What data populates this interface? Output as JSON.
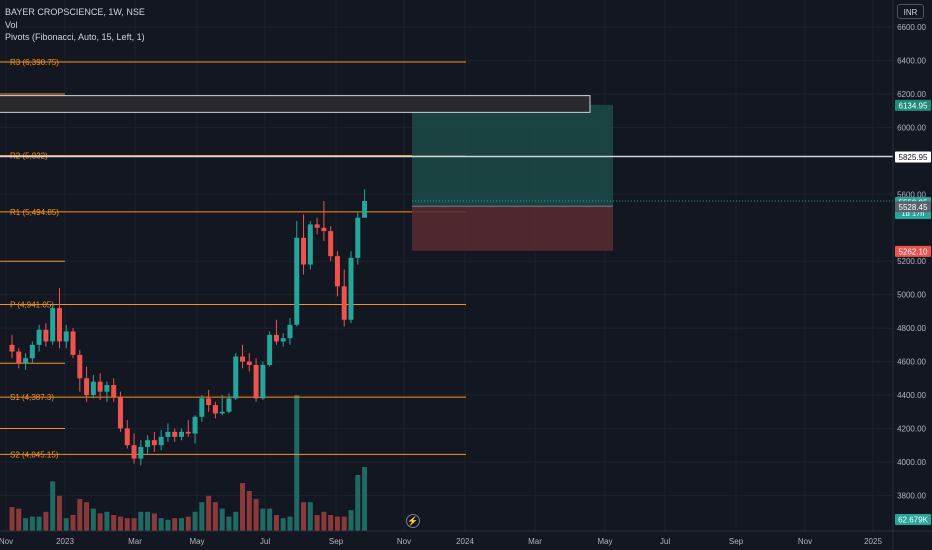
{
  "header": {
    "symbol_line": "BAYER CROPSCIENCE, 1W, NSE",
    "vol_label": "Vol",
    "pivots_label": "Pivots (Fibonacci, Auto, 15, Left, 1)",
    "currency_button": "INR"
  },
  "colors": {
    "background": "#131722",
    "up": "#26a69a",
    "down": "#ef5350",
    "pivot": "#f7931a",
    "grid": "#1e222d",
    "axis_text": "#b2b5be"
  },
  "icons": {
    "replay": "lightning-bolt-icon"
  },
  "chart_data": {
    "type": "candlestick",
    "title": "BAYER CROPSCIENCE, 1W, NSE",
    "timeframe": "1W",
    "exchange": "NSE",
    "currency": "INR",
    "x_tick_labels": [
      "Nov",
      "2023",
      "Mar",
      "May",
      "Jul",
      "Sep",
      "Nov",
      "2024",
      "Mar",
      "May",
      "Jul",
      "Sep",
      "Nov",
      "2025"
    ],
    "y_tick_labels": [
      "6600.00",
      "6400.00",
      "6200.00",
      "6000.00",
      "5600.00",
      "5200.00",
      "5000.00",
      "4800.00",
      "4600.00",
      "4400.00",
      "4200.00",
      "4000.00",
      "3800.00"
    ],
    "ylim": [
      3640,
      6760
    ],
    "pivots": [
      {
        "label": "R3 (6,390.75)",
        "value": 6390.75
      },
      {
        "label": "R2 (5,832)",
        "value": 5832
      },
      {
        "label": "R1 (5,494.85)",
        "value": 5494.85
      },
      {
        "label": "P (4,941.05)",
        "value": 4941.05
      },
      {
        "label": "S1 (4,387.3)",
        "value": 4387.3
      },
      {
        "label": "S2 (4,045.15)",
        "value": 4045.15
      }
    ],
    "partial_left_levels": [
      6200,
      5200,
      4590,
      4200
    ],
    "price_badges": [
      {
        "text": "6134.95",
        "value": 6134.95,
        "kind": "target"
      },
      {
        "text": "5825.95",
        "value": 5825.95,
        "kind": "horizontal-line"
      },
      {
        "text": "5559.95",
        "sub": "1d 17h",
        "value": 5559.95,
        "kind": "last-price"
      },
      {
        "text": "5528.45",
        "value": 5528.45,
        "kind": "entry"
      },
      {
        "text": "5262.10",
        "value": 5262.1,
        "kind": "stop"
      },
      {
        "text": "62.679K",
        "value": null,
        "kind": "volume"
      }
    ],
    "horizontal_line": 5825.95,
    "rectangle_zone": {
      "top": 6190,
      "bottom": 6090
    },
    "position_tool": {
      "target": 6134.95,
      "entry": 5528.45,
      "stop": 5262.1
    },
    "candles": [
      [
        4700,
        4760,
        4620,
        4660
      ],
      [
        4660,
        4680,
        4560,
        4590
      ],
      [
        4590,
        4650,
        4550,
        4620
      ],
      [
        4620,
        4720,
        4590,
        4700
      ],
      [
        4700,
        4820,
        4660,
        4790
      ],
      [
        4790,
        4830,
        4690,
        4720
      ],
      [
        4720,
        4950,
        4700,
        4920
      ],
      [
        4920,
        5040,
        4680,
        4720
      ],
      [
        4720,
        4820,
        4680,
        4780
      ],
      [
        4780,
        4800,
        4620,
        4640
      ],
      [
        4640,
        4670,
        4420,
        4500
      ],
      [
        4500,
        4570,
        4360,
        4400
      ],
      [
        4400,
        4520,
        4380,
        4480
      ],
      [
        4480,
        4530,
        4370,
        4420
      ],
      [
        4420,
        4480,
        4360,
        4460
      ],
      [
        4460,
        4500,
        4360,
        4390
      ],
      [
        4390,
        4420,
        4180,
        4200
      ],
      [
        4200,
        4250,
        4080,
        4100
      ],
      [
        4100,
        4170,
        3990,
        4020
      ],
      [
        4020,
        4130,
        3980,
        4090
      ],
      [
        4090,
        4160,
        4050,
        4130
      ],
      [
        4130,
        4180,
        4060,
        4100
      ],
      [
        4100,
        4190,
        4070,
        4150
      ],
      [
        4150,
        4230,
        4120,
        4180
      ],
      [
        4180,
        4200,
        4120,
        4150
      ],
      [
        4150,
        4200,
        4130,
        4180
      ],
      [
        4180,
        4250,
        4150,
        4170
      ],
      [
        4170,
        4280,
        4110,
        4270
      ],
      [
        4270,
        4400,
        4240,
        4380
      ],
      [
        4380,
        4430,
        4300,
        4340
      ],
      [
        4340,
        4360,
        4260,
        4290
      ],
      [
        4290,
        4400,
        4280,
        4300
      ],
      [
        4300,
        4410,
        4290,
        4380
      ],
      [
        4380,
        4650,
        4370,
        4630
      ],
      [
        4630,
        4700,
        4560,
        4600
      ],
      [
        4600,
        4650,
        4540,
        4580
      ],
      [
        4580,
        4620,
        4360,
        4380
      ],
      [
        4380,
        4600,
        4370,
        4580
      ],
      [
        4580,
        4780,
        4570,
        4760
      ],
      [
        4760,
        4850,
        4700,
        4720
      ],
      [
        4720,
        4770,
        4690,
        4740
      ],
      [
        4740,
        4860,
        4700,
        4820
      ],
      [
        4820,
        5440,
        4810,
        5340
      ],
      [
        5340,
        5480,
        5120,
        5180
      ],
      [
        5180,
        5440,
        5150,
        5420
      ],
      [
        5420,
        5460,
        5360,
        5400
      ],
      [
        5400,
        5560,
        5320,
        5380
      ],
      [
        5380,
        5410,
        5200,
        5230
      ],
      [
        5230,
        5260,
        4990,
        5050
      ],
      [
        5050,
        5150,
        4810,
        4850
      ],
      [
        4850,
        5260,
        4830,
        5220
      ],
      [
        5220,
        5490,
        5180,
        5460
      ],
      [
        5460,
        5630,
        5460,
        5560
      ]
    ],
    "volumes": [
      15,
      14,
      8,
      9,
      9,
      12,
      31,
      22,
      8,
      10,
      20,
      18,
      14,
      11,
      12,
      10,
      9,
      8,
      8,
      12,
      12,
      11,
      8,
      7,
      8,
      8,
      9,
      12,
      18,
      22,
      18,
      14,
      9,
      12,
      30,
      25,
      20,
      14,
      14,
      10,
      8,
      9,
      85,
      18,
      18,
      10,
      12,
      10,
      9,
      9,
      13,
      35,
      40
    ]
  }
}
